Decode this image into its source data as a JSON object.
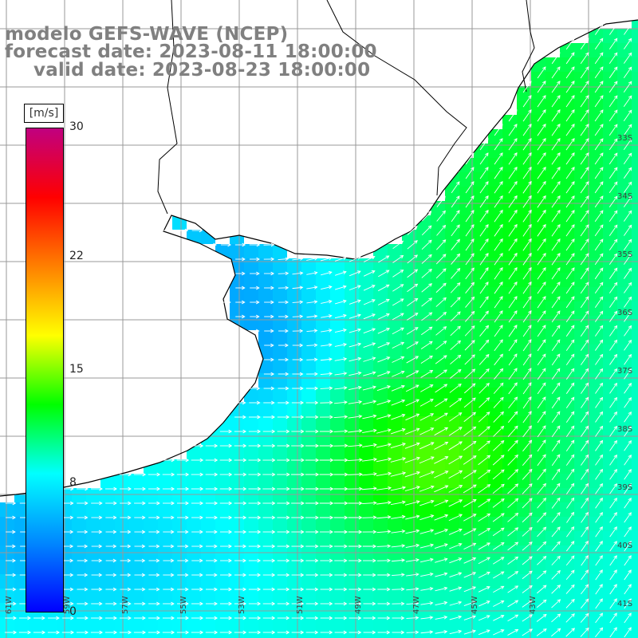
{
  "title": {
    "line1": "modelo GEFS-WAVE (NCEP)",
    "line2": "forecast date: 2023-08-11 18:00:00",
    "line3": "valid date: 2023-08-23 18:00:00"
  },
  "legend": {
    "units": "[m/s]",
    "ticks": [
      {
        "label": "30",
        "value": 30
      },
      {
        "label": "22",
        "value": 22
      },
      {
        "label": "15",
        "value": 15
      },
      {
        "label": "8",
        "value": 8
      },
      {
        "label": "0",
        "value": 0
      }
    ],
    "min": 0,
    "max": 30,
    "colors": [
      "#0000ff",
      "#0088ff",
      "#00ffff",
      "#00ff00",
      "#ffff00",
      "#ff8000",
      "#ff0000",
      "#c00080"
    ]
  },
  "map": {
    "land_color": "#ffffff",
    "grid_color": "#999999",
    "coast_color": "#000000",
    "arrow_color": "#ffffff",
    "edge_labels_bottom": [
      "61W",
      "59W",
      "57W",
      "55W",
      "53W",
      "51W",
      "49W",
      "47W",
      "45W",
      "43W"
    ],
    "edge_labels_right": [
      "33S",
      "34S",
      "35S",
      "36S",
      "37S",
      "38S",
      "39S",
      "40S",
      "41S"
    ]
  }
}
